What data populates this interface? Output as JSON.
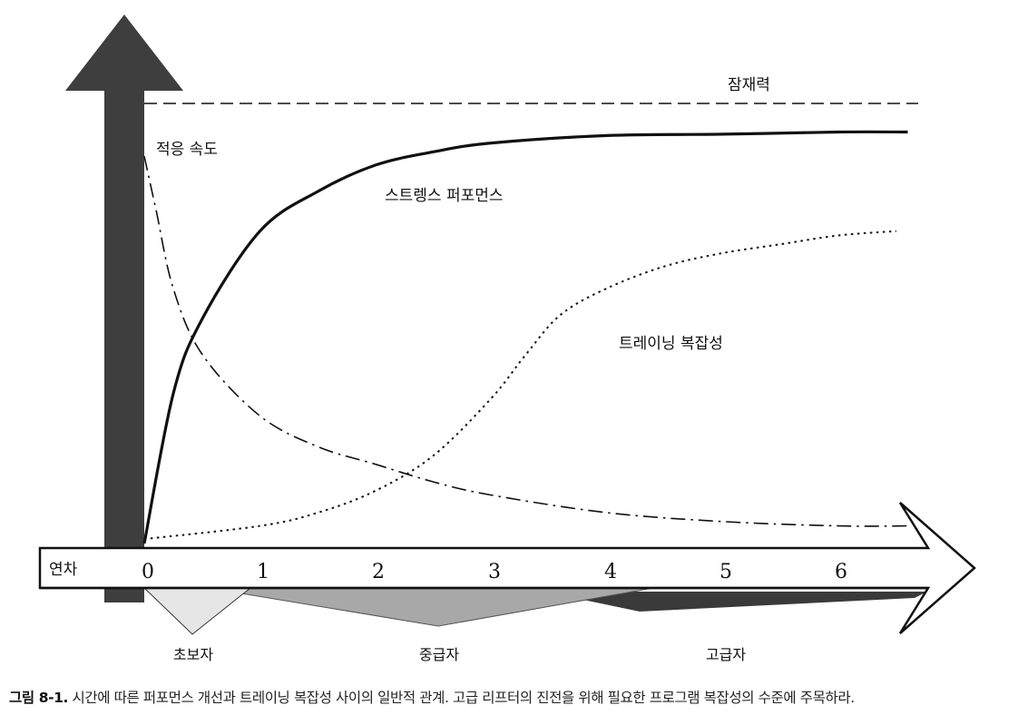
{
  "chart_data": {
    "type": "line",
    "x_axis_label": "연차",
    "x_ticks": [
      "0",
      "1",
      "2",
      "3",
      "4",
      "5",
      "6"
    ],
    "xlim": [
      0,
      6.6
    ],
    "ylim": [
      0,
      1
    ],
    "grid": false,
    "potential": {
      "name": "잠재력",
      "value": 0.94,
      "style": "dashed"
    },
    "series": [
      {
        "name": "스트렝스 퍼포먼스",
        "style": "solid",
        "x": [
          0,
          0.25,
          0.5,
          1,
          1.5,
          2,
          2.5,
          3,
          4,
          5,
          6,
          6.6
        ],
        "values": [
          0,
          0.34,
          0.51,
          0.71,
          0.8,
          0.86,
          0.89,
          0.91,
          0.927,
          0.93,
          0.935,
          0.935
        ]
      },
      {
        "name": "적응 속도",
        "style": "dash-dot",
        "x": [
          0,
          0.1,
          0.25,
          0.5,
          1,
          1.5,
          2,
          2.5,
          3,
          4,
          5,
          6,
          6.6
        ],
        "values": [
          0.88,
          0.76,
          0.58,
          0.43,
          0.29,
          0.22,
          0.18,
          0.14,
          0.11,
          0.07,
          0.05,
          0.04,
          0.04
        ]
      },
      {
        "name": "트레이닝 복잡성",
        "style": "dotted",
        "x": [
          0,
          1,
          1.5,
          2,
          2.5,
          3,
          3.3,
          3.6,
          4,
          4.5,
          5,
          5.5,
          6,
          6.5
        ],
        "values": [
          0.01,
          0.04,
          0.07,
          0.12,
          0.2,
          0.33,
          0.43,
          0.52,
          0.58,
          0.63,
          0.66,
          0.68,
          0.7,
          0.71
        ]
      }
    ],
    "levels": [
      "초보자",
      "중급자",
      "고급자"
    ]
  },
  "caption": {
    "number": "그림 8-1.",
    "text": " 시간에 따른 퍼포먼스 개선과 트레이닝 복잡성 사이의 일반적 관계. 고급 리프터의 진전을 위해 필요한 프로그램 복잡성의 수준에 주목하라."
  },
  "colors": {
    "ink": "#111111",
    "axis_dark": "#3e3e3e",
    "novice": "#e6e6e6",
    "intermediate": "#a8a8a8",
    "advanced": "#3a3a3a"
  }
}
